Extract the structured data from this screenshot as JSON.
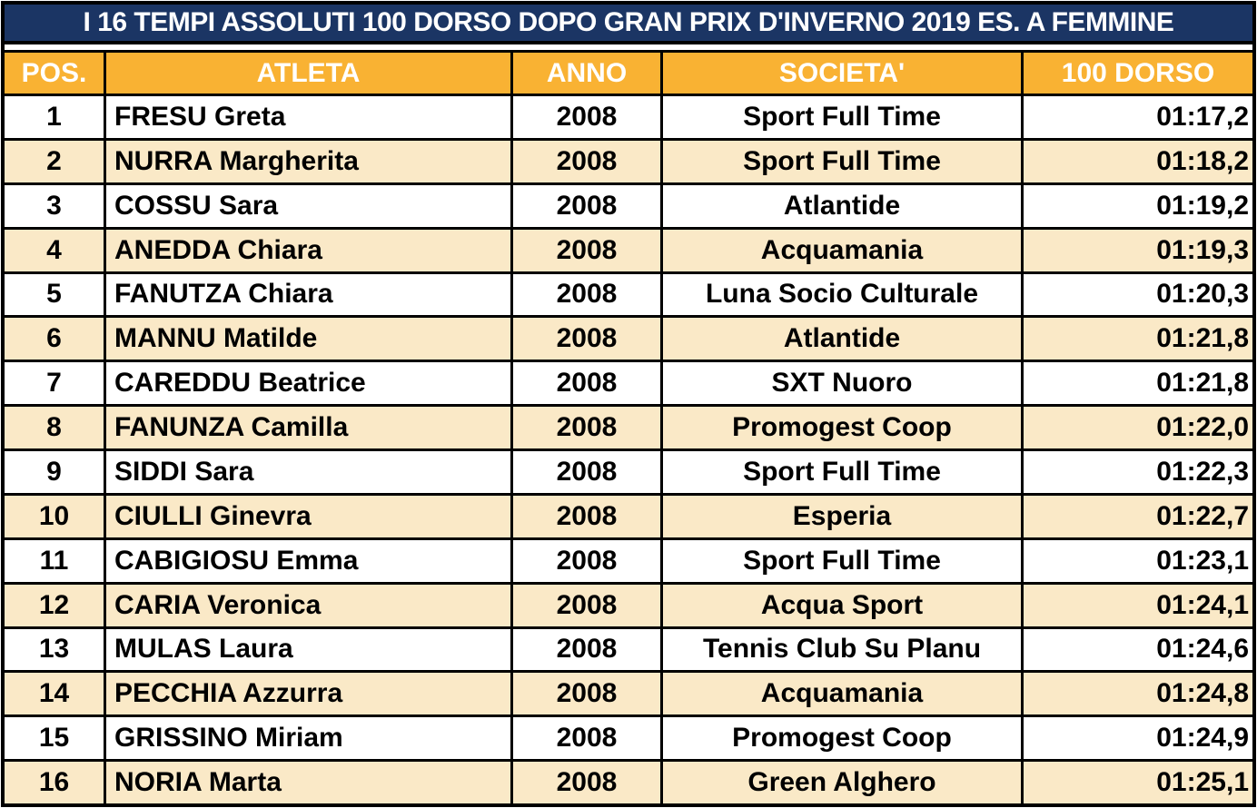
{
  "title": "I 16 TEMPI ASSOLUTI 100 DORSO DOPO GRAN PRIX D'INVERNO 2019 ES. A FEMMINE",
  "chart_data": {
    "type": "table",
    "title": "I 16 TEMPI ASSOLUTI 100 DORSO DOPO GRAN PRIX D'INVERNO 2019 ES. A FEMMINE",
    "columns": [
      "POS.",
      "ATLETA",
      "ANNO",
      "SOCIETA'",
      "100 DORSO"
    ],
    "rows": [
      [
        "1",
        "FRESU Greta",
        "2008",
        "Sport Full Time",
        "01:17,2"
      ],
      [
        "2",
        "NURRA Margherita",
        "2008",
        "Sport Full Time",
        "01:18,2"
      ],
      [
        "3",
        "COSSU Sara",
        "2008",
        "Atlantide",
        "01:19,2"
      ],
      [
        "4",
        "ANEDDA Chiara",
        "2008",
        "Acquamania",
        "01:19,3"
      ],
      [
        "5",
        "FANUTZA Chiara",
        "2008",
        "Luna Socio Culturale",
        "01:20,3"
      ],
      [
        "6",
        "MANNU Matilde",
        "2008",
        "Atlantide",
        "01:21,8"
      ],
      [
        "7",
        "CAREDDU Beatrice",
        "2008",
        "SXT Nuoro",
        "01:21,8"
      ],
      [
        "8",
        "FANUNZA Camilla",
        "2008",
        "Promogest Coop",
        "01:22,0"
      ],
      [
        "9",
        "SIDDI Sara",
        "2008",
        "Sport Full Time",
        "01:22,3"
      ],
      [
        "10",
        "CIULLI Ginevra",
        "2008",
        "Esperia",
        "01:22,7"
      ],
      [
        "11",
        "CABIGIOSU Emma",
        "2008",
        "Sport Full Time",
        "01:23,1"
      ],
      [
        "12",
        "CARIA Veronica",
        "2008",
        "Acqua Sport",
        "01:24,1"
      ],
      [
        "13",
        "MULAS Laura",
        "2008",
        "Tennis Club Su Planu",
        "01:24,6"
      ],
      [
        "14",
        "PECCHIA Azzurra",
        "2008",
        "Acquamania",
        "01:24,8"
      ],
      [
        "15",
        "GRISSINO Miriam",
        "2008",
        "Promogest Coop",
        "01:24,9"
      ],
      [
        "16",
        "NORIA Marta",
        "2008",
        "Green Alghero",
        "01:25,1"
      ]
    ]
  },
  "colors": {
    "title_background": "#1B3564",
    "header_background": "#F9B233",
    "alt_row_background": "#FAE9C7",
    "border": "#000000",
    "header_text": "#FFFFFF",
    "body_text": "#000000"
  }
}
